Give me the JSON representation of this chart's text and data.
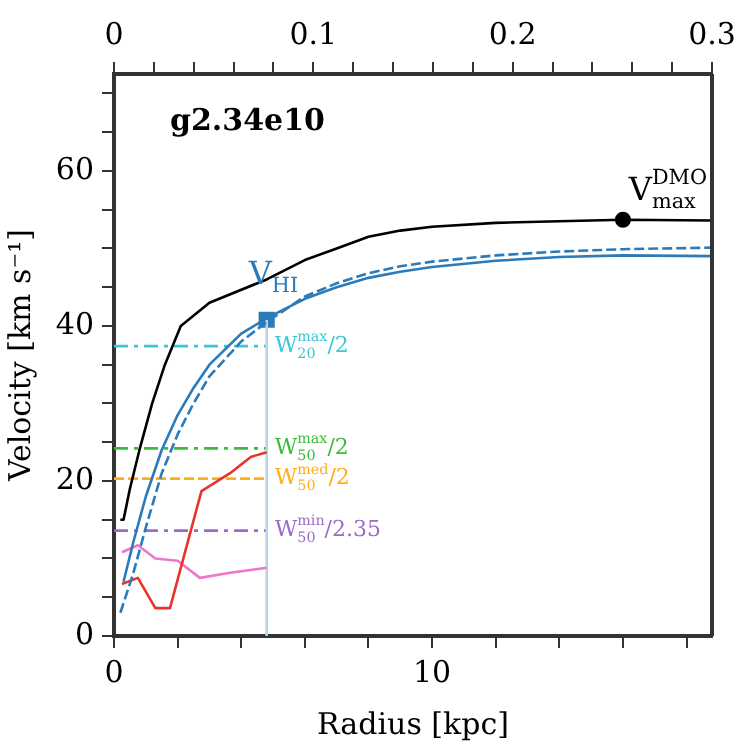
{
  "chart_data": {
    "type": "line",
    "xlabel": "Radius [kpc]",
    "ylabel": "Velocity [km s⁻¹]",
    "xlim": [
      0,
      18.8
    ],
    "xticks": [
      0,
      {
        "value": 2,
        "label": null
      },
      {
        "value": 4,
        "label": null
      },
      {
        "value": 6,
        "label": null
      },
      {
        "value": 8,
        "label": null
      },
      10,
      {
        "value": 12,
        "label": null
      },
      {
        "value": 14,
        "label": null
      },
      {
        "value": 16,
        "label": null
      },
      {
        "value": 18,
        "label": null
      }
    ],
    "x2lim": [
      0,
      0.3
    ],
    "x2ticks": [
      0,
      {
        "value": 0.02,
        "label": null
      },
      {
        "value": 0.04,
        "label": null
      },
      {
        "value": 0.06,
        "label": null
      },
      {
        "value": 0.08,
        "label": null
      },
      0.1,
      {
        "value": 0.12,
        "label": null
      },
      {
        "value": 0.14,
        "label": null
      },
      {
        "value": 0.16,
        "label": null
      },
      {
        "value": 0.18,
        "label": null
      },
      0.2,
      {
        "value": 0.22,
        "label": null
      },
      {
        "value": 0.24,
        "label": null
      },
      {
        "value": 0.26,
        "label": null
      },
      {
        "value": 0.28,
        "label": null
      },
      0.3
    ],
    "ylim": [
      0,
      72.5
    ],
    "yticks": [
      0,
      {
        "value": 5,
        "label": null
      },
      {
        "value": 10,
        "label": null
      },
      {
        "value": 15,
        "label": null
      },
      20,
      {
        "value": 25,
        "label": null
      },
      {
        "value": 30,
        "label": null
      },
      {
        "value": 35,
        "label": null
      },
      40,
      {
        "value": 45,
        "label": null
      },
      {
        "value": 50,
        "label": null
      },
      {
        "value": 55,
        "label": null
      },
      60,
      {
        "value": 65,
        "label": null
      },
      {
        "value": 70,
        "label": null
      }
    ],
    "grid": false,
    "legend": false,
    "annotations": [
      "g2.34e10",
      {
        "text": "V$^{DMO}$$_{max}$",
        "x": 16,
        "y": 53.7
      },
      {
        "text": "V$_{HI}$",
        "x": 4.8,
        "y": 40.8
      }
    ],
    "series": [
      {
        "color": "#000000",
        "x": [
          0.2,
          0.3,
          0.5,
          0.8,
          1.2,
          1.6,
          2.1,
          3,
          4.8,
          6,
          7,
          8,
          9,
          10,
          12,
          14,
          16,
          18.8
        ],
        "values": [
          15,
          15,
          19,
          24,
          30,
          35,
          40,
          43,
          46,
          48.5,
          50,
          51.5,
          52.3,
          52.8,
          53.3,
          53.5,
          53.7,
          53.6
        ]
      },
      {
        "color": "#2b7bba",
        "x": [
          0.3,
          0.6,
          1,
          1.5,
          2,
          2.5,
          3,
          4,
          4.8,
          6,
          7,
          8,
          9,
          10,
          12,
          14,
          16,
          18.8
        ],
        "values": [
          7,
          12,
          18,
          24,
          28.5,
          32,
          35,
          39,
          41,
          43.5,
          45,
          46.2,
          47,
          47.6,
          48.4,
          48.9,
          49.1,
          49
        ]
      },
      {
        "color": "#2b7bba",
        "line_style": "dashed",
        "x": [
          0.2,
          0.6,
          1,
          1.5,
          2,
          2.5,
          3,
          4,
          4.8,
          6,
          7,
          8,
          9,
          10,
          12,
          14,
          16,
          18.8
        ],
        "values": [
          3,
          8,
          14,
          21,
          26,
          30,
          33.5,
          38,
          40.5,
          43.8,
          45.5,
          46.8,
          47.7,
          48.3,
          49.1,
          49.6,
          49.9,
          50.1
        ]
      },
      {
        "color": "#e8332f",
        "x": [
          0.25,
          0.75,
          1.3,
          1.76,
          2.75,
          3.65,
          4.3,
          4.8
        ],
        "values": [
          6.7,
          7.5,
          3.6,
          3.6,
          18.7,
          21,
          23.1,
          23.7
        ]
      },
      {
        "color": "#ee77c8",
        "x": [
          0.25,
          0.75,
          1.3,
          2,
          2.7,
          3.7,
          4.8
        ],
        "values": [
          10.8,
          11.7,
          10,
          9.7,
          7.5,
          8.2,
          8.8
        ]
      },
      {
        "color": "#b8d4e8",
        "x": [
          4.8,
          4.8
        ],
        "values": [
          0,
          40.8
        ]
      },
      {
        "name": "W$^{max}$$_{20}$/2",
        "color": "#3cc6d8",
        "line_style": "dashdot",
        "x": [
          0,
          4.8
        ],
        "values": [
          37.4,
          37.4
        ]
      },
      {
        "name": "W$^{max}$$_{50}$/2",
        "color": "#3cba3c",
        "line_style": "dashdot",
        "x": [
          0,
          4.8
        ],
        "values": [
          24.2,
          24.2
        ]
      },
      {
        "name": "W$^{med}$$_{50}$/2",
        "color": "#ffae1a",
        "line_style": "dashed",
        "x": [
          0,
          4.8
        ],
        "values": [
          20.3,
          20.3
        ]
      },
      {
        "name": "W$^{min}$$_{50}$/2.35",
        "color": "#9b6bc6",
        "line_style": "dashdot",
        "x": [
          0,
          4.8
        ],
        "values": [
          13.6,
          13.6
        ]
      },
      {
        "type": "scatter",
        "marker": "circle",
        "color": "#000000",
        "x": [
          16
        ],
        "values": [
          53.7
        ]
      },
      {
        "type": "scatter",
        "marker": "square",
        "color": "#2b7bba",
        "x": [
          4.8
        ],
        "values": [
          40.8
        ]
      }
    ]
  }
}
